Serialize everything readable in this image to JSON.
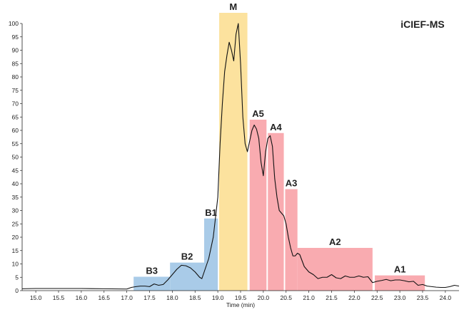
{
  "chart_data": {
    "type": "line",
    "title": "iCIEF-MS",
    "xlabel": "Time (min)",
    "ylabel": "",
    "xlim": [
      14.7,
      24.3
    ],
    "ylim": [
      0,
      100
    ],
    "xticks": [
      "15.0",
      "15.5",
      "16.0",
      "16.5",
      "17.0",
      "17.5",
      "18.0",
      "18.5",
      "19.0",
      "19.5",
      "20.0",
      "20.5",
      "21.0",
      "21.5",
      "22.0",
      "22.5",
      "23.0",
      "23.5",
      "24.0"
    ],
    "yticks": [
      "0",
      "5",
      "10",
      "15",
      "20",
      "25",
      "30",
      "35",
      "40",
      "45",
      "50",
      "55",
      "60",
      "65",
      "70",
      "75",
      "80",
      "85",
      "90",
      "95",
      "100"
    ],
    "fractions": [
      {
        "name": "B3",
        "x0": 17.15,
        "x1": 17.95,
        "height": 5.2,
        "color": "#a9cbe8"
      },
      {
        "name": "B2",
        "x0": 17.95,
        "x1": 18.7,
        "height": 10.5,
        "color": "#a9cbe8"
      },
      {
        "name": "B1",
        "x0": 18.7,
        "x1": 19.0,
        "height": 27,
        "color": "#a9cbe8"
      },
      {
        "name": "M",
        "x0": 19.03,
        "x1": 19.65,
        "height": 104,
        "color": "#fce29e"
      },
      {
        "name": "A5",
        "x0": 19.7,
        "x1": 20.07,
        "height": 64,
        "color": "#f9abb0"
      },
      {
        "name": "A4",
        "x0": 20.1,
        "x1": 20.45,
        "height": 59,
        "color": "#f9abb0"
      },
      {
        "name": "A3",
        "x0": 20.48,
        "x1": 20.75,
        "height": 38,
        "color": "#f9abb0"
      },
      {
        "name": "A2",
        "x0": 20.75,
        "x1": 22.4,
        "height": 16,
        "color": "#f9abb0"
      },
      {
        "name": "A1",
        "x0": 22.45,
        "x1": 23.55,
        "height": 5.7,
        "color": "#f9abb0"
      }
    ],
    "series": [
      {
        "name": "trace",
        "x": [
          14.7,
          15.0,
          15.5,
          16.0,
          16.5,
          17.0,
          17.1,
          17.2,
          17.3,
          17.4,
          17.5,
          17.6,
          17.7,
          17.8,
          17.9,
          18.0,
          18.1,
          18.2,
          18.3,
          18.4,
          18.5,
          18.6,
          18.65,
          18.7,
          18.8,
          18.9,
          19.0,
          19.05,
          19.1,
          19.15,
          19.2,
          19.25,
          19.3,
          19.35,
          19.4,
          19.45,
          19.5,
          19.55,
          19.6,
          19.65,
          19.7,
          19.75,
          19.8,
          19.85,
          19.9,
          19.95,
          20.0,
          20.05,
          20.1,
          20.15,
          20.2,
          20.25,
          20.3,
          20.35,
          20.4,
          20.45,
          20.5,
          20.55,
          20.6,
          20.65,
          20.7,
          20.75,
          20.8,
          20.9,
          21.0,
          21.1,
          21.2,
          21.3,
          21.4,
          21.5,
          21.6,
          21.7,
          21.8,
          21.9,
          22.0,
          22.1,
          22.2,
          22.3,
          22.4,
          22.5,
          22.6,
          22.7,
          22.8,
          22.9,
          23.0,
          23.1,
          23.2,
          23.3,
          23.4,
          23.5,
          23.6,
          23.7,
          23.8,
          23.9,
          24.0,
          24.1,
          24.2,
          24.3
        ],
        "y": [
          0.7,
          0.8,
          0.8,
          0.8,
          0.7,
          0.6,
          1.2,
          1.5,
          1.7,
          1.7,
          1.5,
          2.5,
          2.0,
          2.3,
          4.0,
          6.0,
          8.0,
          9.5,
          9.3,
          8.5,
          7.0,
          5.0,
          4.5,
          7.0,
          12.0,
          20.0,
          35.0,
          55.0,
          70.0,
          82.0,
          88.0,
          93.0,
          90.0,
          86.0,
          96.0,
          100.0,
          85.0,
          65.0,
          55.0,
          52.0,
          56.0,
          60.0,
          62.0,
          60.5,
          57.0,
          48.0,
          43.0,
          52.0,
          57.0,
          58.0,
          54.0,
          42.0,
          35.0,
          30.0,
          29.0,
          28.0,
          25.0,
          20.0,
          16.0,
          13.0,
          13.0,
          14.0,
          13.5,
          9.0,
          7.0,
          6.0,
          4.5,
          5.0,
          5.0,
          6.0,
          4.8,
          4.5,
          5.5,
          5.0,
          5.0,
          5.5,
          5.0,
          5.2,
          3.0,
          3.5,
          3.8,
          4.2,
          3.7,
          4.0,
          4.0,
          3.7,
          3.3,
          3.5,
          2.0,
          2.3,
          1.7,
          1.5,
          1.3,
          1.2,
          1.2,
          1.5,
          2.0,
          1.7
        ]
      }
    ]
  }
}
